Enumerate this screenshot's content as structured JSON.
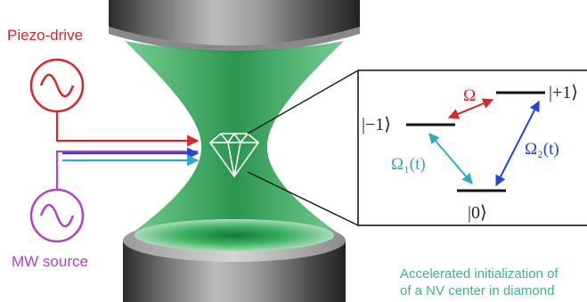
{
  "labels": {
    "piezo_drive": "Piezo-drive",
    "mw_source": "MW source"
  },
  "levels": {
    "minus_one": "|−1⟩",
    "plus_one": "|+1⟩",
    "zero": "|0⟩"
  },
  "transitions": {
    "omega": "Ω",
    "omega_1": "Ω₁(t)",
    "omega_2": "Ω₂(t)"
  },
  "caption": {
    "line1": "Accelerated initialization of",
    "line2": "of a NV center in diamond"
  },
  "colors": {
    "piezo_red": "#d7262c",
    "mw_purple": "#b043c6",
    "blue": "#2046d6",
    "cyan": "#33a9c9",
    "beam_green": "#2fa85a",
    "caption_green": "#3fb289",
    "text_dark": "#222222"
  },
  "icons": {
    "piezo_drive": "sine-wave-source-icon",
    "mw_source": "sine-wave-source-icon",
    "diamond": "diamond-crystal-icon"
  }
}
